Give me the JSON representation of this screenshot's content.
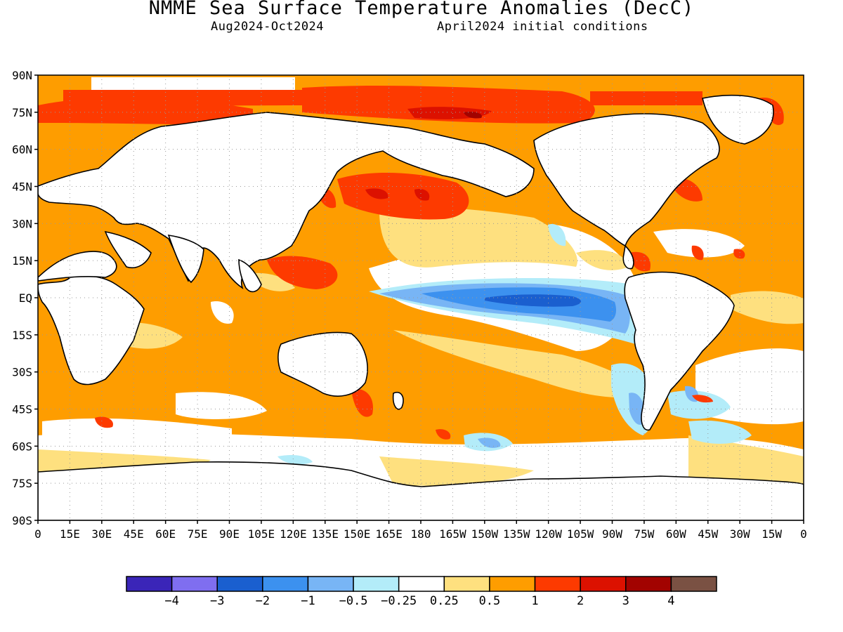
{
  "title": "NMME Sea Surface Temperature Anomalies (DecC)",
  "period": "Aug2024-Oct2024",
  "init": "April2024 initial conditions",
  "lat_labels": [
    "90N",
    "75N",
    "60N",
    "45N",
    "30N",
    "15N",
    "EQ",
    "15S",
    "30S",
    "45S",
    "60S",
    "75S",
    "90S"
  ],
  "lon_labels": [
    "0",
    "15E",
    "30E",
    "45E",
    "60E",
    "75E",
    "90E",
    "105E",
    "120E",
    "135E",
    "150E",
    "165E",
    "180",
    "165W",
    "150W",
    "135W",
    "120W",
    "105W",
    "90W",
    "75W",
    "60W",
    "45W",
    "30W",
    "15W",
    "0"
  ],
  "colorbar": {
    "colors": [
      "#3a25b8",
      "#7f6ef0",
      "#1a5fcf",
      "#3c91ef",
      "#78b5f5",
      "#b3ecf9",
      "#ffffff",
      "#fee07f",
      "#fe9d00",
      "#fd3a00",
      "#dc1100",
      "#a20300",
      "#7a5143"
    ],
    "labels": [
      "-4",
      "-3",
      "-2",
      "-1",
      "-0.5",
      "-0.25",
      "0.25",
      "0.5",
      "1",
      "2",
      "3",
      "4"
    ]
  }
}
